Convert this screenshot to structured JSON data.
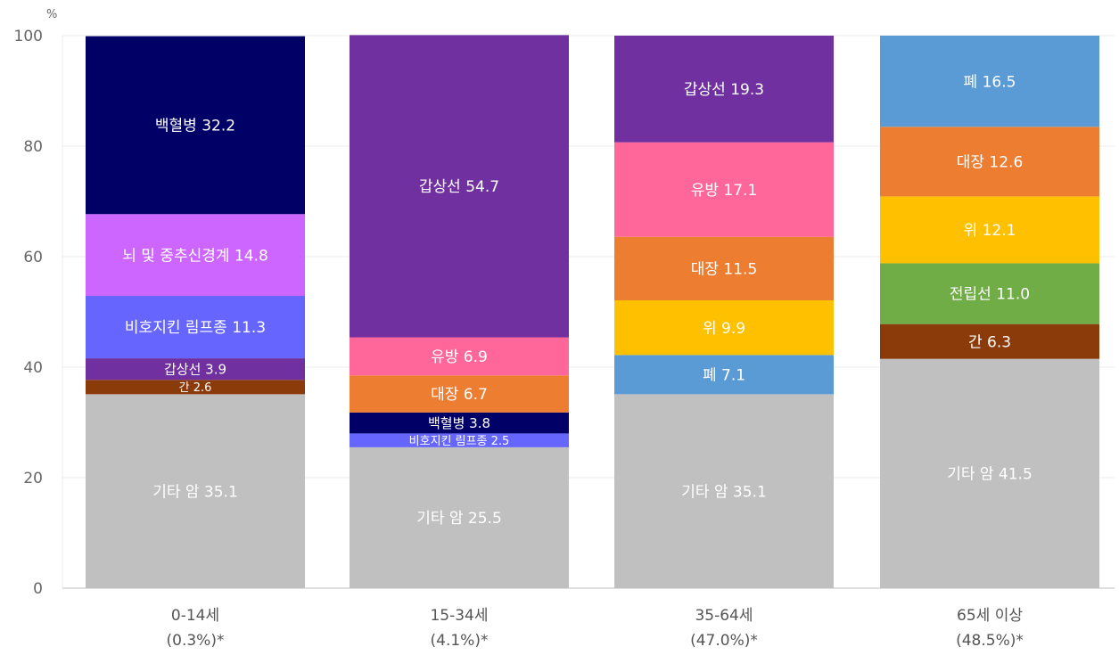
{
  "chart_data": {
    "type": "bar",
    "stacked": true,
    "unit": "%",
    "ylim": [
      0,
      100
    ],
    "yticks": [
      0,
      20,
      40,
      60,
      80,
      100
    ],
    "grid": true,
    "categories": [
      {
        "label": "0-14세",
        "share": "(0.3%)*"
      },
      {
        "label": "15-34세",
        "share": "(4.1%)*"
      },
      {
        "label": "35-64세",
        "share": "(47.0%)*"
      },
      {
        "label": "65세 이상",
        "share": "(48.5%)*"
      }
    ],
    "stacks": [
      [
        {
          "name": "기타 암",
          "value": 35.1,
          "label": "기타 암 35.1",
          "color": "#c0c0c0"
        },
        {
          "name": "간",
          "value": 2.6,
          "label": "간 2.6",
          "color": "#8b3a0a"
        },
        {
          "name": "갑상선",
          "value": 3.9,
          "label": "갑상선 3.9",
          "color": "#7030a0"
        },
        {
          "name": "비호지킨 림프종",
          "value": 11.3,
          "label": "비호지킨 림프종 11.3",
          "color": "#6666ff"
        },
        {
          "name": "뇌 및 중추신경계",
          "value": 14.8,
          "label": "뇌 및 중추신경계 14.8",
          "color": "#cc66ff"
        },
        {
          "name": "백혈병",
          "value": 32.2,
          "label": "백혈병 32.2",
          "color": "#000066"
        }
      ],
      [
        {
          "name": "기타 암",
          "value": 25.5,
          "label": "기타 암 25.5",
          "color": "#c0c0c0"
        },
        {
          "name": "비호지킨 림프종",
          "value": 2.5,
          "label": "비호지킨 림프종 2.5",
          "color": "#6666ff"
        },
        {
          "name": "백혈병",
          "value": 3.8,
          "label": "백혈병 3.8",
          "color": "#000066"
        },
        {
          "name": "대장",
          "value": 6.7,
          "label": "대장 6.7",
          "color": "#ed7d31"
        },
        {
          "name": "유방",
          "value": 6.9,
          "label": "유방 6.9",
          "color": "#ff6699"
        },
        {
          "name": "갑상선",
          "value": 54.7,
          "label": "갑상선 54.7",
          "color": "#7030a0"
        }
      ],
      [
        {
          "name": "기타 암",
          "value": 35.1,
          "label": "기타 암 35.1",
          "color": "#c0c0c0"
        },
        {
          "name": "폐",
          "value": 7.1,
          "label": "폐 7.1",
          "color": "#5b9bd5"
        },
        {
          "name": "위",
          "value": 9.9,
          "label": "위 9.9",
          "color": "#ffc000"
        },
        {
          "name": "대장",
          "value": 11.5,
          "label": "대장 11.5",
          "color": "#ed7d31"
        },
        {
          "name": "유방",
          "value": 17.1,
          "label": "유방 17.1",
          "color": "#ff6699"
        },
        {
          "name": "갑상선",
          "value": 19.3,
          "label": "갑상선 19.3",
          "color": "#7030a0"
        }
      ],
      [
        {
          "name": "기타 암",
          "value": 41.5,
          "label": "기타 암 41.5",
          "color": "#c0c0c0"
        },
        {
          "name": "간",
          "value": 6.3,
          "label": "간 6.3",
          "color": "#8b3a0a"
        },
        {
          "name": "전립선",
          "value": 11.0,
          "label": "전립선 11.0",
          "color": "#70ad47"
        },
        {
          "name": "위",
          "value": 12.1,
          "label": "위 12.1",
          "color": "#ffc000"
        },
        {
          "name": "대장",
          "value": 12.6,
          "label": "대장 12.6",
          "color": "#ed7d31"
        },
        {
          "name": "폐",
          "value": 16.5,
          "label": "폐 16.5",
          "color": "#5b9bd5"
        }
      ]
    ]
  }
}
